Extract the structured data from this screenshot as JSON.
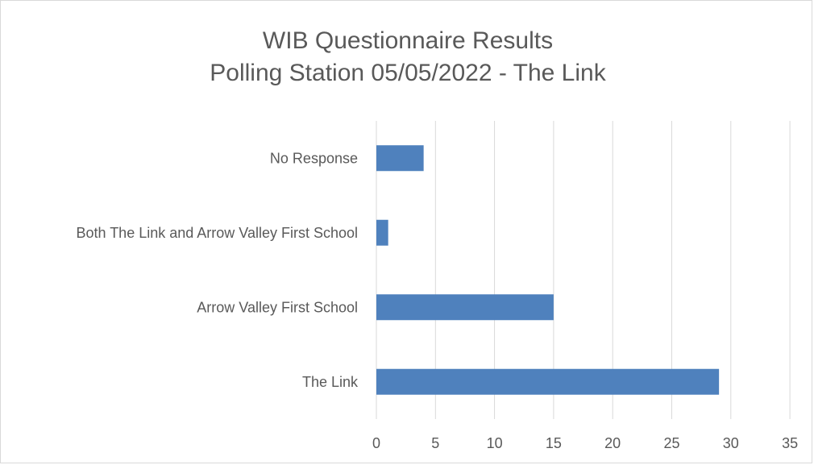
{
  "chart_data": {
    "type": "bar",
    "orientation": "horizontal",
    "title": "WIB Questionnaire Results",
    "subtitle": "Polling Station 05/05/2022 - The Link",
    "categories": [
      "No Response",
      "Both The Link and Arrow Valley First School",
      "Arrow Valley First School",
      "The Link"
    ],
    "values": [
      4,
      1,
      15,
      29
    ],
    "xlim": [
      0,
      35
    ],
    "xticks": [
      "0",
      "5",
      "10",
      "15",
      "20",
      "25",
      "30",
      "35"
    ],
    "grid": "vertical",
    "legend": "none",
    "bar_color": "#4f81bd",
    "grid_color": "#d9d9d9"
  }
}
